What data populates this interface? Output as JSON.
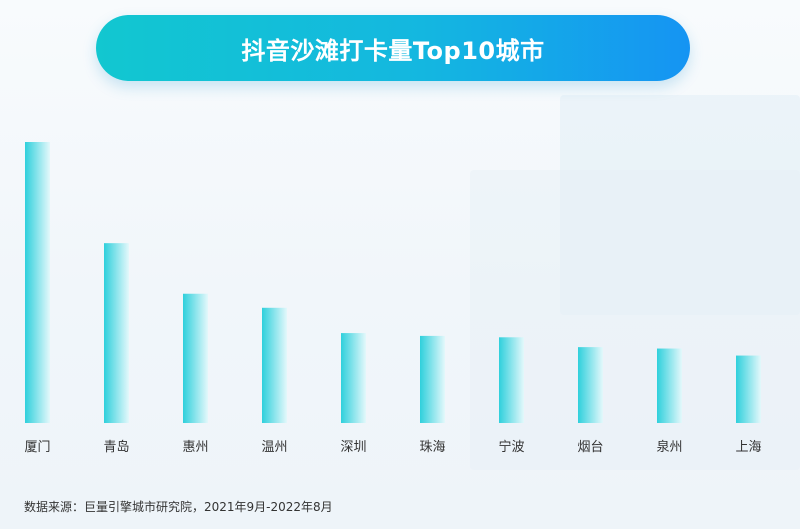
{
  "title": "抖音沙滩打卡量Top10城市",
  "source": "数据来源：巨量引擎城市研究院，2021年9月-2022年8月",
  "colors": {
    "bar_start": "#2fd0dc",
    "bar_end": "#e4f8fb",
    "title_start": "#12c7d0",
    "title_end": "#1594f3"
  },
  "chart_data": {
    "type": "bar",
    "title": "抖音沙滩打卡量Top10城市",
    "xlabel": "",
    "ylabel": "",
    "categories": [
      "厦门",
      "青岛",
      "惠州",
      "温州",
      "深圳",
      "珠海",
      "宁波",
      "烟台",
      "泉州",
      "上海"
    ],
    "values": [
      100,
      64,
      46,
      41,
      32,
      31,
      30.5,
      27,
      26.5,
      24
    ],
    "ylim": [
      0,
      100
    ],
    "grid": false,
    "legend": "none",
    "value_note": "no value axis shown; values are relative heights (厦门 = 100)"
  }
}
